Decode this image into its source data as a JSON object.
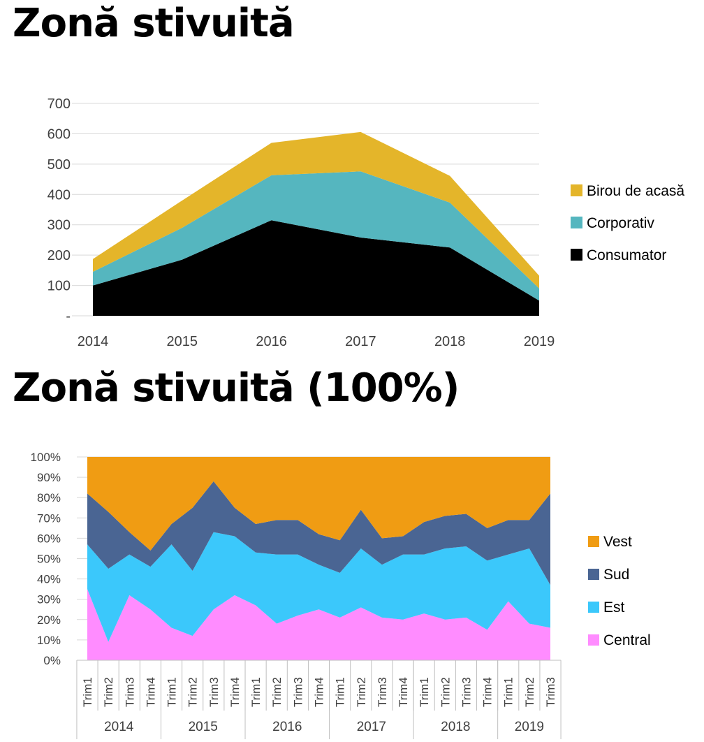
{
  "chart_data": [
    {
      "type": "area",
      "stacked": true,
      "title": "Zonă stivuită",
      "categories": [
        "2014",
        "2015",
        "2016",
        "2017",
        "2018",
        "2019"
      ],
      "series": [
        {
          "name": "Consumator",
          "values": [
            100,
            185,
            315,
            258,
            225,
            50
          ],
          "color": "#000000"
        },
        {
          "name": "Corporativ",
          "values": [
            45,
            105,
            148,
            218,
            148,
            40
          ],
          "color": "#55b6bf"
        },
        {
          "name": "Birou de acasă",
          "values": [
            42,
            90,
            107,
            130,
            88,
            42
          ],
          "color": "#e4b52a"
        }
      ],
      "y_ticks": [
        "-",
        "100",
        "200",
        "300",
        "400",
        "500",
        "600",
        "700"
      ],
      "ylim": [
        0,
        700
      ],
      "grid": true,
      "legend_position": "right"
    },
    {
      "type": "area",
      "stacked": true,
      "normalized": true,
      "title": "Zonă stivuită (100%)",
      "categories": [
        "Trim1",
        "Trim2",
        "Trim3",
        "Trim4",
        "Trim1",
        "Trim2",
        "Trim3",
        "Trim4",
        "Trim1",
        "Trim2",
        "Trim3",
        "Trim4",
        "Trim1",
        "Trim2",
        "Trim3",
        "Trim4",
        "Trim1",
        "Trim2",
        "Trim3",
        "Trim4",
        "Trim1",
        "Trim2",
        "Trim3"
      ],
      "groups": [
        {
          "label": "2014",
          "count": 4
        },
        {
          "label": "2015",
          "count": 4
        },
        {
          "label": "2016",
          "count": 4
        },
        {
          "label": "2017",
          "count": 4
        },
        {
          "label": "2018",
          "count": 4
        },
        {
          "label": "2019",
          "count": 3
        }
      ],
      "series": [
        {
          "name": "Central",
          "values": [
            35,
            9,
            32,
            25,
            16,
            12,
            25,
            32,
            27,
            18,
            22,
            25,
            21,
            26,
            21,
            20,
            23,
            20,
            21,
            15,
            29,
            18,
            16
          ],
          "color": "#ff8cff"
        },
        {
          "name": "Est",
          "values": [
            22,
            36,
            20,
            21,
            41,
            32,
            38,
            29,
            26,
            34,
            30,
            22,
            22,
            29,
            26,
            32,
            29,
            35,
            35,
            34,
            23,
            37,
            21
          ],
          "color": "#3bc8fb"
        },
        {
          "name": "Sud",
          "values": [
            25,
            28,
            11,
            8,
            10,
            31,
            25,
            14,
            14,
            17,
            17,
            15,
            16,
            19,
            13,
            9,
            16,
            16,
            16,
            16,
            17,
            14,
            45
          ],
          "color": "#4a6593"
        },
        {
          "name": "Vest",
          "values": [
            18,
            27,
            37,
            46,
            33,
            25,
            12,
            25,
            33,
            31,
            31,
            38,
            41,
            26,
            40,
            39,
            32,
            29,
            28,
            35,
            31,
            31,
            18
          ],
          "color": "#f09c13"
        }
      ],
      "y_ticks": [
        "0%",
        "10%",
        "20%",
        "30%",
        "40%",
        "50%",
        "60%",
        "70%",
        "80%",
        "90%",
        "100%"
      ],
      "ylim": [
        0,
        100
      ],
      "grid": true,
      "legend_position": "right"
    }
  ]
}
